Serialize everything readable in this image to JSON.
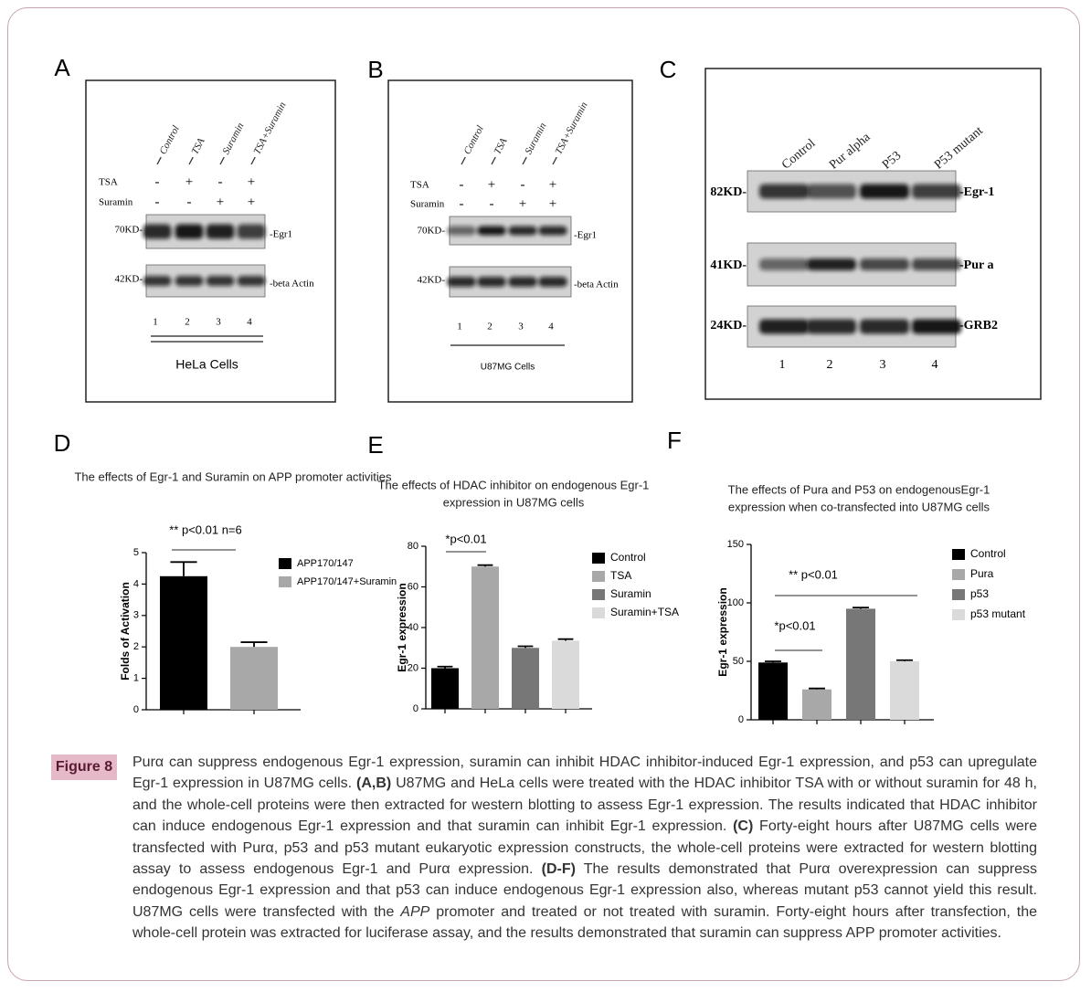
{
  "panel_labels": [
    "A",
    "B",
    "C",
    "D",
    "E",
    "F"
  ],
  "blots": [
    {
      "lanes": [
        "Control",
        "TSA",
        "Suramin",
        "TSA+Suramin"
      ],
      "treatments": [
        {
          "name": "TSA",
          "signs": [
            "-",
            "+",
            "-",
            "+"
          ]
        },
        {
          "name": "Suramin",
          "signs": [
            "-",
            "-",
            "+",
            "+"
          ]
        }
      ],
      "markers": [
        "70KD-",
        "42KD-"
      ],
      "bands": [
        "-Egr1",
        "-beta Actin"
      ],
      "lane_numbers": [
        "1",
        "2",
        "3",
        "4"
      ],
      "cells": "HeLa Cells"
    },
    {
      "lanes": [
        "Control",
        "TSA",
        "Suramin",
        "TSA+Suramin"
      ],
      "treatments": [
        {
          "name": "TSA",
          "signs": [
            "-",
            "+",
            "-",
            "+"
          ]
        },
        {
          "name": "Suramin",
          "signs": [
            "-",
            "-",
            "+",
            "+"
          ]
        }
      ],
      "markers": [
        "70KD-",
        "42KD-"
      ],
      "bands": [
        "-Egr1",
        "-beta Actin"
      ],
      "lane_numbers": [
        "1",
        "2",
        "3",
        "4"
      ],
      "cells": "U87MG Cells"
    },
    {
      "lanes": [
        "Control",
        "Pur alpha",
        "P53",
        "P53 mutant"
      ],
      "markers": [
        "82KD-",
        "41KD-",
        "24KD-"
      ],
      "bands": [
        "-Egr-1",
        "-Pur a",
        "-GRB2"
      ],
      "lane_numbers": [
        "1",
        "2",
        "3",
        "4"
      ]
    }
  ],
  "chart_data": [
    {
      "type": "bar",
      "title": [
        "The effects of Egr-1 and Suramin on APP promoter activities"
      ],
      "y_label": "Folds of Activation",
      "annotations": [
        "** p<0.01 n=6"
      ],
      "ylim": [
        0,
        5
      ],
      "yticks": [
        0,
        1,
        2,
        3,
        4,
        5
      ],
      "series": [
        {
          "name": "APP170/147",
          "color": "#000000",
          "values": [
            4.25
          ],
          "errors": [
            0.45
          ]
        },
        {
          "name": "APP170/147+Suramin",
          "color": "#a8a8a8",
          "values": [
            2.0
          ],
          "errors": [
            0.15
          ]
        }
      ]
    },
    {
      "type": "bar",
      "title": [
        "The effects of HDAC inhibitor on endogenous Egr-1",
        "expression in U87MG cells"
      ],
      "y_label": "Egr-1 expression",
      "annotations": [
        "*p<0.01"
      ],
      "ylim": [
        0,
        80
      ],
      "yticks": [
        0,
        20,
        40,
        60,
        80
      ],
      "series": [
        {
          "name": "Control",
          "color": "#000000",
          "values": [
            20
          ],
          "errors": [
            0.8
          ]
        },
        {
          "name": "TSA",
          "color": "#a8a8a8",
          "values": [
            70
          ],
          "errors": [
            0.7
          ]
        },
        {
          "name": "Suramin",
          "color": "#777777",
          "values": [
            30
          ],
          "errors": [
            0.8
          ]
        },
        {
          "name": "Suramin+TSA",
          "color": "#dadada",
          "values": [
            33.5
          ],
          "errors": [
            0.8
          ]
        }
      ]
    },
    {
      "type": "bar",
      "title": [
        "The effects of Pura and P53 on endogenousEgr-1",
        "expression when co-transfected into U87MG cells"
      ],
      "y_label": "Egr-1 expression",
      "annotations": [
        "** p<0.01",
        "*p<0.01"
      ],
      "ylim": [
        0,
        150
      ],
      "yticks": [
        0,
        50,
        100,
        150
      ],
      "series": [
        {
          "name": "Control",
          "color": "#000000",
          "values": [
            49
          ],
          "errors": [
            1
          ]
        },
        {
          "name": "Pura",
          "color": "#a8a8a8",
          "values": [
            26
          ],
          "errors": [
            0.8
          ]
        },
        {
          "name": "p53",
          "color": "#777777",
          "values": [
            95
          ],
          "errors": [
            1
          ]
        },
        {
          "name": "p53 mutant",
          "color": "#dadada",
          "values": [
            50
          ],
          "errors": [
            1
          ]
        }
      ]
    }
  ],
  "caption": {
    "label": "Figure 8",
    "parts": [
      {
        "style": "normal",
        "text": "Purα can suppress endogenous Egr-1 expression, suramin can inhibit HDAC inhibitor-induced Egr-1 expression, and p53 can upregulate Egr-1 expression in U87MG cells. "
      },
      {
        "style": "bold",
        "text": "(A,B)"
      },
      {
        "style": "normal",
        "text": " U87MG and HeLa cells were treated with the HDAC inhibitor TSA with or without suramin for 48 h, and the whole-cell proteins were then extracted for western blotting to assess Egr-1 expression. The results indicated that HDAC inhibitor can induce endogenous Egr-1 expression and that suramin can inhibit Egr-1 expression. "
      },
      {
        "style": "bold",
        "text": "(C)"
      },
      {
        "style": "normal",
        "text": " Forty-eight hours after U87MG cells were transfected with Purα, p53 and p53 mutant eukaryotic expression constructs, the whole-cell proteins were extracted for western blotting assay to assess endogenous Egr-1 and Purα expression. "
      },
      {
        "style": "bold",
        "text": "(D-F)"
      },
      {
        "style": "normal",
        "text": " The results demonstrated that Purα overexpression can suppress endogenous Egr-1 expression and that p53 can induce endogenous Egr-1 expression also, whereas mutant p53 cannot yield this result. U87MG cells were transfected with the "
      },
      {
        "style": "italic",
        "text": "APP"
      },
      {
        "style": "normal",
        "text": " promoter and treated or not treated with suramin. Forty-eight hours after transfection, the whole-cell protein was extracted for luciferase assay, and the results demonstrated that suramin can suppress APP promoter activities."
      }
    ]
  }
}
